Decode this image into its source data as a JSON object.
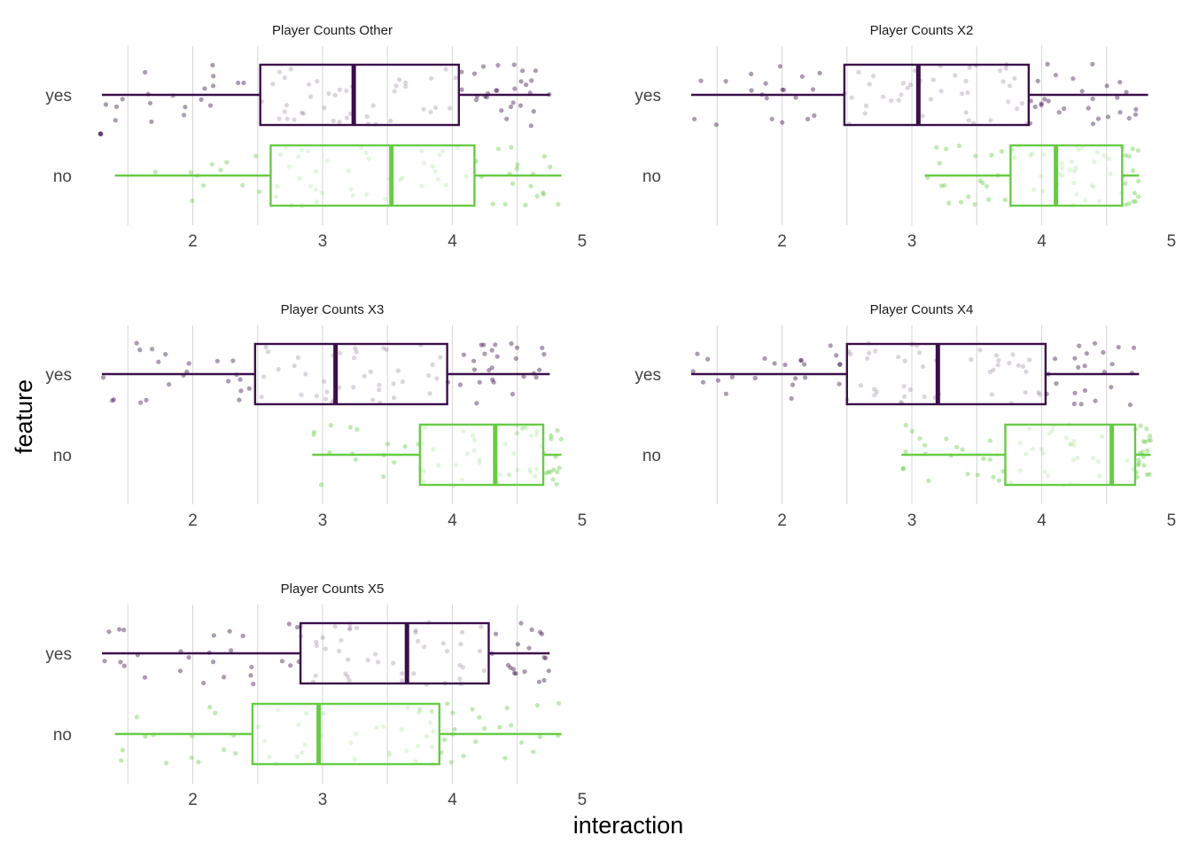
{
  "chart_data": {
    "type": "boxplot",
    "xlabel": "interaction",
    "ylabel": "feature",
    "xlim": [
      1.3,
      4.85
    ],
    "x_ticks": [
      2,
      3,
      4,
      5
    ],
    "categories": [
      "yes",
      "no"
    ],
    "grid": "vertical",
    "colors": {
      "yes": "#3b0f4a",
      "no": "#66cc44"
    },
    "panels": [
      {
        "title": "Player Counts Other",
        "boxes": [
          {
            "group": "yes",
            "min": 1.3,
            "q1": 2.52,
            "median": 3.24,
            "q3": 4.05,
            "max": 4.75,
            "outliers": [
              1.29
            ]
          },
          {
            "group": "no",
            "min": 1.4,
            "q1": 2.6,
            "median": 3.53,
            "q3": 4.17,
            "max": 4.84,
            "outliers": []
          }
        ]
      },
      {
        "title": "Player Counts X2",
        "boxes": [
          {
            "group": "yes",
            "min": 1.3,
            "q1": 2.48,
            "median": 3.05,
            "q3": 3.9,
            "max": 4.82,
            "outliers": []
          },
          {
            "group": "no",
            "min": 3.1,
            "q1": 3.76,
            "median": 4.11,
            "q3": 4.62,
            "max": 4.75,
            "outliers": []
          }
        ]
      },
      {
        "title": "Player Counts X3",
        "boxes": [
          {
            "group": "yes",
            "min": 1.3,
            "q1": 2.48,
            "median": 3.1,
            "q3": 3.96,
            "max": 4.75,
            "outliers": []
          },
          {
            "group": "no",
            "min": 2.92,
            "q1": 3.75,
            "median": 4.33,
            "q3": 4.7,
            "max": 4.84,
            "outliers": []
          }
        ]
      },
      {
        "title": "Player Counts X4",
        "boxes": [
          {
            "group": "yes",
            "min": 1.3,
            "q1": 2.5,
            "median": 3.2,
            "q3": 4.03,
            "max": 4.75,
            "outliers": []
          },
          {
            "group": "no",
            "min": 2.92,
            "q1": 3.72,
            "median": 4.54,
            "q3": 4.72,
            "max": 4.84,
            "outliers": []
          }
        ]
      },
      {
        "title": "Player Counts X5",
        "boxes": [
          {
            "group": "yes",
            "min": 1.3,
            "q1": 2.83,
            "median": 3.65,
            "q3": 4.28,
            "max": 4.75,
            "outliers": []
          },
          {
            "group": "no",
            "min": 1.4,
            "q1": 2.46,
            "median": 2.97,
            "q3": 3.9,
            "max": 4.84,
            "outliers": []
          }
        ]
      }
    ]
  }
}
